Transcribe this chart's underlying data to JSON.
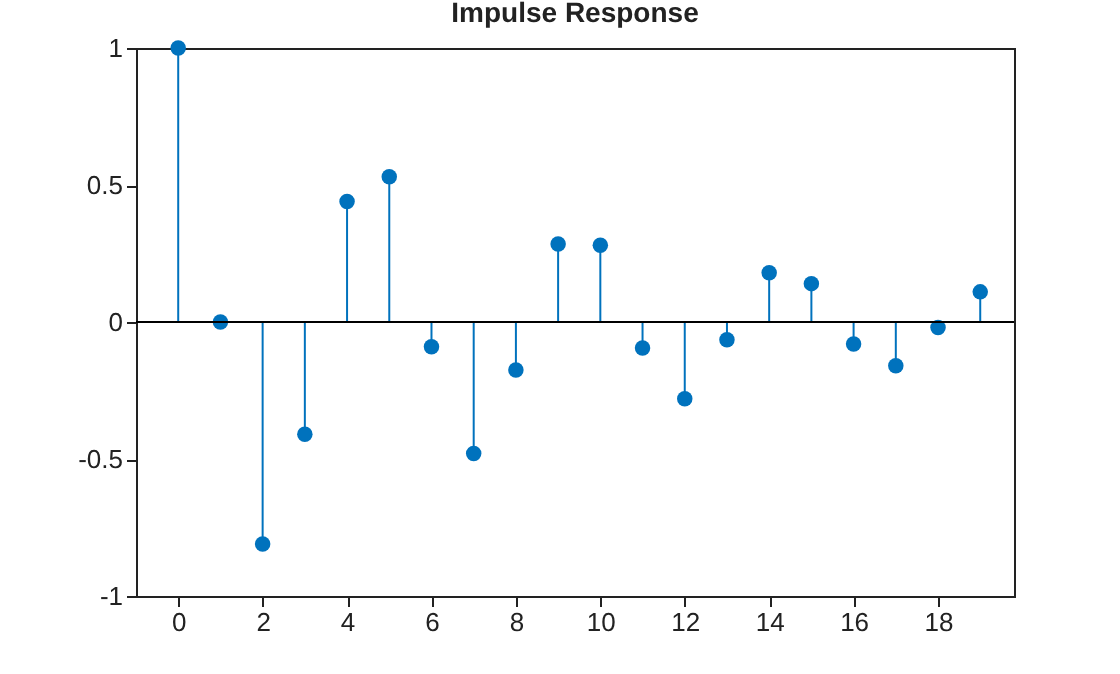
{
  "chart_data": {
    "type": "lollipop",
    "title": "Impulse Response",
    "x": [
      0,
      1,
      2,
      3,
      4,
      5,
      6,
      7,
      8,
      9,
      10,
      11,
      12,
      13,
      14,
      15,
      16,
      17,
      18,
      19
    ],
    "series": [
      {
        "color": "#0072bd",
        "values": [
          1,
          0,
          -0.81,
          -0.41,
          0.44,
          0.53,
          -0.09,
          -0.48,
          -0.175,
          0.285,
          0.28,
          -0.095,
          -0.28,
          -0.065,
          0.18,
          0.14,
          -0.08,
          -0.16,
          -0.02,
          0.11
        ]
      }
    ],
    "xlim": [
      -1,
      19.8
    ],
    "xticks": [
      0,
      2,
      4,
      6,
      8,
      10,
      12,
      14,
      16,
      18
    ],
    "ylim": [
      -1,
      1
    ],
    "yticks": [
      -1,
      -0.5,
      0,
      0.5,
      1
    ],
    "ref_lines": [
      {
        "axis": "y",
        "value": 0,
        "color": "#000000"
      }
    ],
    "marker": "circle",
    "grid": false
  }
}
